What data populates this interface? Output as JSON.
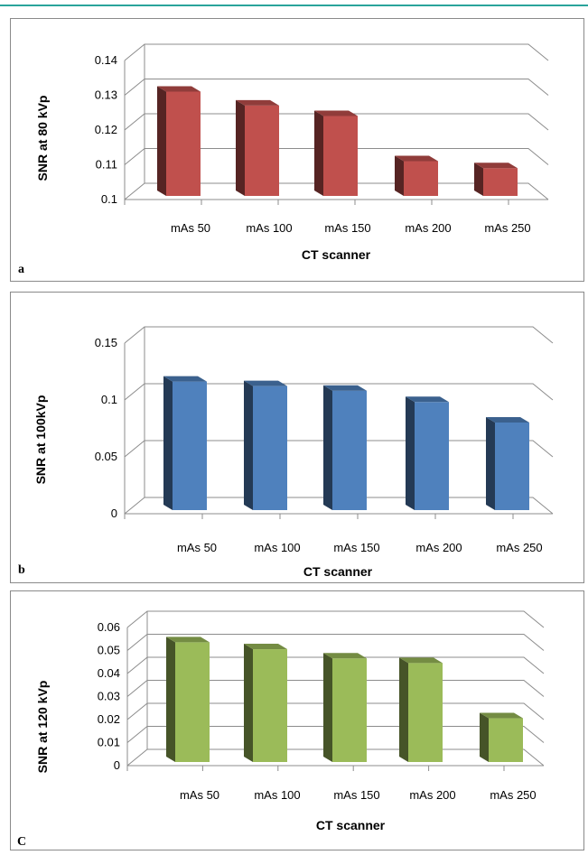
{
  "chart_data": [
    {
      "type": "bar",
      "panel_label": "a",
      "categories": [
        "mAs 50",
        "mAs 100",
        "mAs 150",
        "mAs 200",
        "mAs 250"
      ],
      "values": [
        0.13,
        0.126,
        0.123,
        0.11,
        0.108
      ],
      "ylim": [
        0.1,
        0.14
      ],
      "yticks": [
        "0.1",
        "0.11",
        "0.12",
        "0.13",
        "0.14"
      ],
      "xlabel": "CT scanner",
      "ylabel": "SNR at 80 kVp",
      "color": "#c0504d"
    },
    {
      "type": "bar",
      "panel_label": "b",
      "categories": [
        "mAs 50",
        "mAs 100",
        "mAs 150",
        "mAs 200",
        "mAs 250"
      ],
      "values": [
        0.113,
        0.109,
        0.105,
        0.095,
        0.077
      ],
      "ylim": [
        0,
        0.15
      ],
      "yticks": [
        "0",
        "0.05",
        "0.1",
        "0.15"
      ],
      "xlabel": "CT scanner",
      "ylabel": "SNR at 100kVp",
      "color": "#4f81bd"
    },
    {
      "type": "bar",
      "panel_label": "C",
      "categories": [
        "mAs 50",
        "mAs 100",
        "mAs 150",
        "mAs 200",
        "mAs 250"
      ],
      "values": [
        0.052,
        0.049,
        0.045,
        0.043,
        0.019
      ],
      "ylim": [
        0,
        0.06
      ],
      "yticks": [
        "0",
        "0.01",
        "0.02",
        "0.03",
        "0.04",
        "0.05",
        "0.06"
      ],
      "xlabel": "CT scanner",
      "ylabel": "SNR at 120 kVp",
      "color": "#9bbb59"
    }
  ]
}
